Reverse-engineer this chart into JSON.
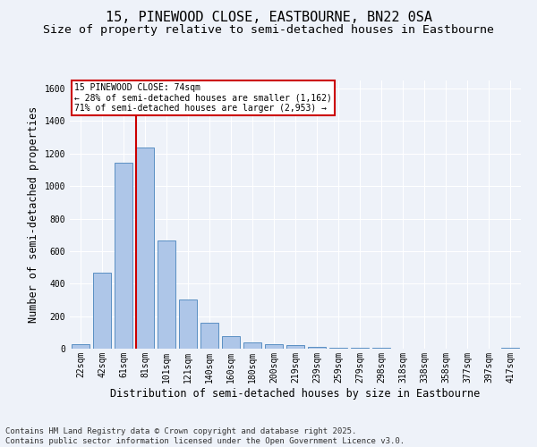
{
  "title": "15, PINEWOOD CLOSE, EASTBOURNE, BN22 0SA",
  "subtitle": "Size of property relative to semi-detached houses in Eastbourne",
  "xlabel": "Distribution of semi-detached houses by size in Eastbourne",
  "ylabel": "Number of semi-detached properties",
  "categories": [
    "22sqm",
    "42sqm",
    "61sqm",
    "81sqm",
    "101sqm",
    "121sqm",
    "140sqm",
    "160sqm",
    "180sqm",
    "200sqm",
    "219sqm",
    "239sqm",
    "259sqm",
    "279sqm",
    "298sqm",
    "318sqm",
    "338sqm",
    "358sqm",
    "377sqm",
    "397sqm",
    "417sqm"
  ],
  "values": [
    25,
    470,
    1145,
    1240,
    665,
    300,
    160,
    75,
    40,
    30,
    20,
    12,
    8,
    5,
    3,
    2,
    2,
    1,
    1,
    1,
    8
  ],
  "bar_color": "#aec6e8",
  "bar_edge_color": "#5a8fc3",
  "vline_pos": 2.57,
  "vline_color": "#cc0000",
  "annotation_title": "15 PINEWOOD CLOSE: 74sqm",
  "annotation_line2": "← 28% of semi-detached houses are smaller (1,162)",
  "annotation_line3": "71% of semi-detached houses are larger (2,953) →",
  "annotation_box_color": "#cc0000",
  "ylim": [
    0,
    1650
  ],
  "yticks": [
    0,
    200,
    400,
    600,
    800,
    1000,
    1200,
    1400,
    1600
  ],
  "background_color": "#eef2f9",
  "footer": "Contains HM Land Registry data © Crown copyright and database right 2025.\nContains public sector information licensed under the Open Government Licence v3.0.",
  "title_fontsize": 11,
  "subtitle_fontsize": 9.5,
  "axis_label_fontsize": 8.5,
  "tick_fontsize": 7,
  "footer_fontsize": 6.5
}
